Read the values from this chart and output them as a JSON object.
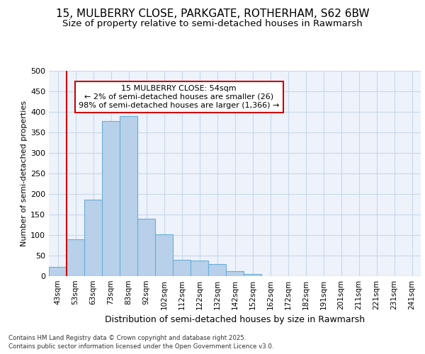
{
  "title1": "15, MULBERRY CLOSE, PARKGATE, ROTHERHAM, S62 6BW",
  "title2": "Size of property relative to semi-detached houses in Rawmarsh",
  "xlabel": "Distribution of semi-detached houses by size in Rawmarsh",
  "ylabel": "Number of semi-detached properties",
  "categories": [
    "43sqm",
    "53sqm",
    "63sqm",
    "73sqm",
    "83sqm",
    "92sqm",
    "102sqm",
    "112sqm",
    "122sqm",
    "132sqm",
    "142sqm",
    "152sqm",
    "162sqm",
    "172sqm",
    "182sqm",
    "191sqm",
    "201sqm",
    "211sqm",
    "221sqm",
    "231sqm",
    "241sqm"
  ],
  "values": [
    22,
    90,
    186,
    378,
    390,
    140,
    102,
    40,
    38,
    30,
    12,
    5,
    0,
    0,
    0,
    0,
    0,
    0,
    0,
    0,
    0
  ],
  "bar_color": "#b8d0ea",
  "bar_edge_color": "#6aaed6",
  "vline_x": 1,
  "annotation_line1": "15 MULBERRY CLOSE: 54sqm",
  "annotation_line2": "← 2% of semi-detached houses are smaller (26)",
  "annotation_line3": "98% of semi-detached houses are larger (1,366) →",
  "vline_color": "#cc0000",
  "annotation_box_edge": "#cc0000",
  "ylim": [
    0,
    500
  ],
  "yticks": [
    0,
    50,
    100,
    150,
    200,
    250,
    300,
    350,
    400,
    450,
    500
  ],
  "grid_color": "#c8d8e8",
  "bg_color": "#eef2fa",
  "footer1": "Contains HM Land Registry data © Crown copyright and database right 2025.",
  "footer2": "Contains public sector information licensed under the Open Government Licence v3.0.",
  "title1_fontsize": 11,
  "title2_fontsize": 9.5,
  "xlabel_fontsize": 9,
  "ylabel_fontsize": 8
}
